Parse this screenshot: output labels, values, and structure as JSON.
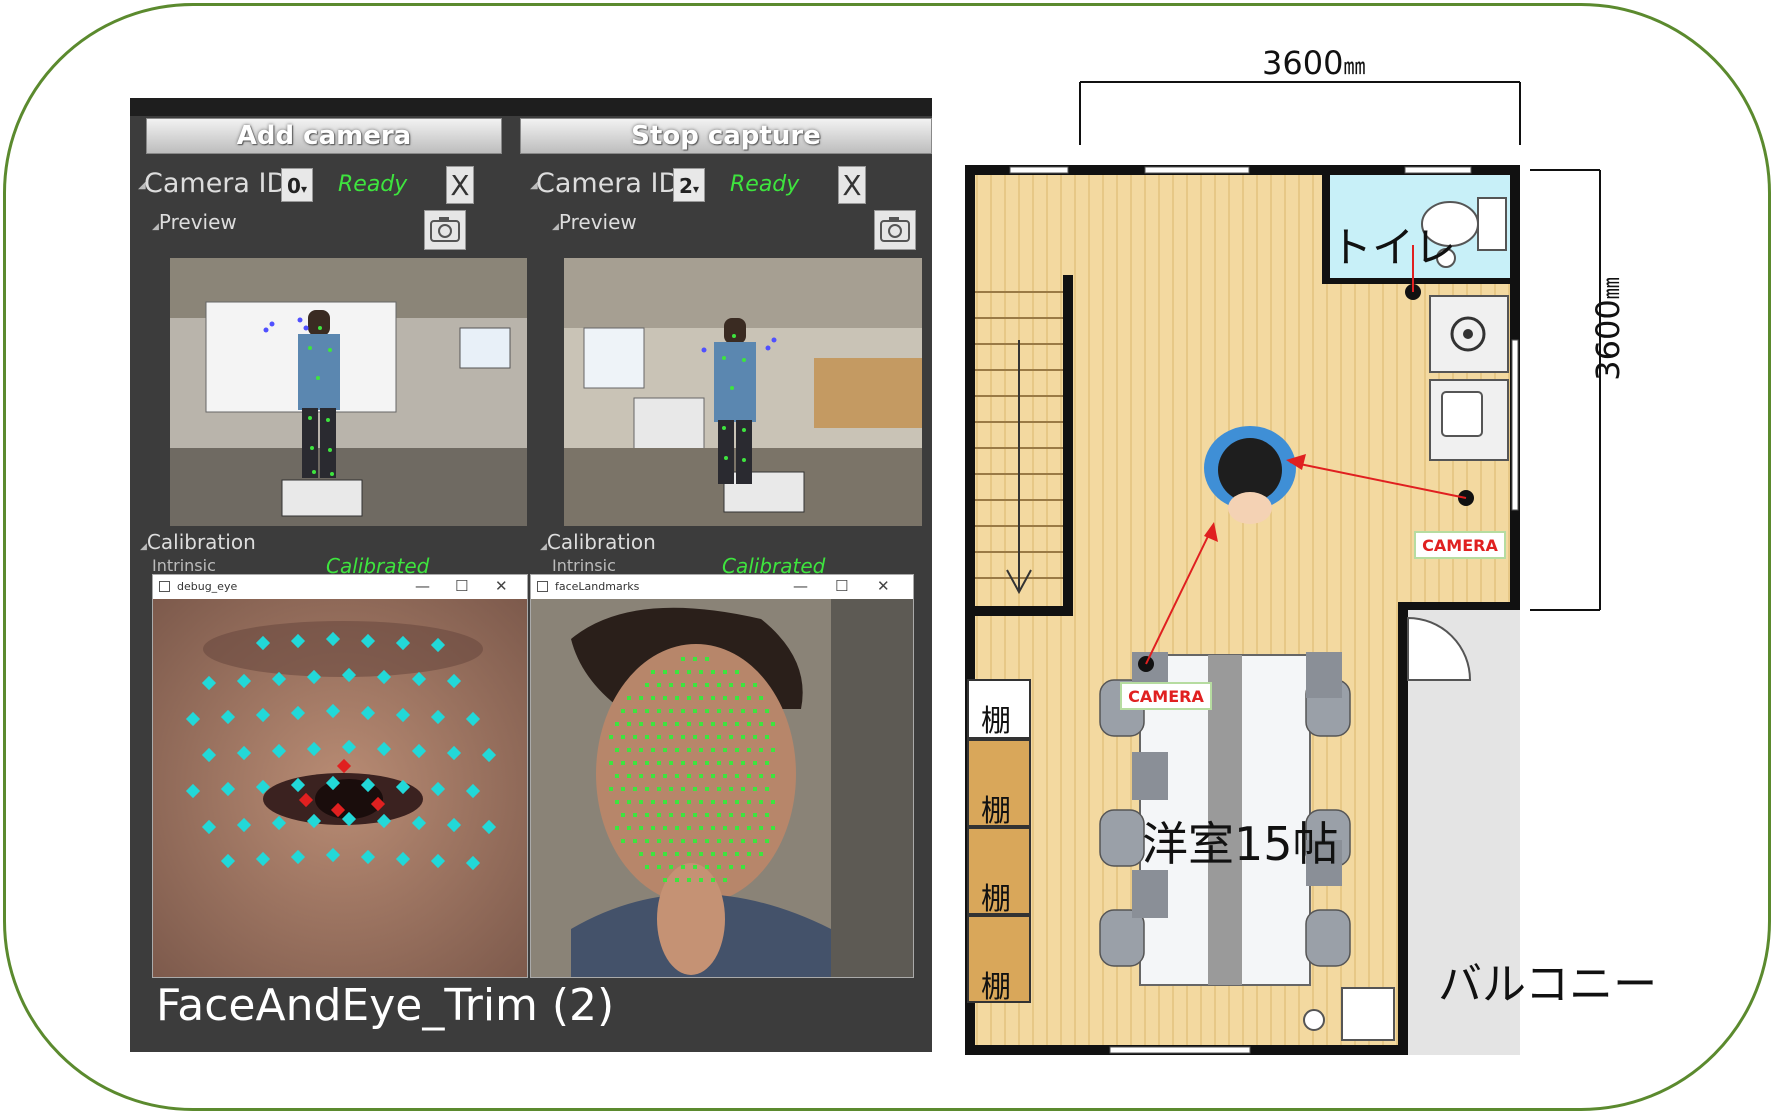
{
  "app": {
    "add_camera_label": "Add camera",
    "stop_capture_label": "Stop capture",
    "cameras": [
      {
        "camera_id_label": "Camera ID:",
        "id": "0",
        "status": "Ready",
        "close": "X",
        "preview_label": "Preview",
        "calibration_label": "Calibration",
        "intrinsic_label": "Intrinsic",
        "calibrated_label": "Calibrated"
      },
      {
        "camera_id_label": "Camera ID:",
        "id": "2",
        "status": "Ready",
        "close": "X",
        "preview_label": "Preview",
        "calibration_label": "Calibration",
        "intrinsic_label": "Intrinsic",
        "calibrated_label": "Calibrated"
      }
    ],
    "windows": [
      {
        "title": "debug_eye"
      },
      {
        "title": "faceLandmarks"
      }
    ],
    "caption": "FaceAndEye_Trim (2)"
  },
  "floorplan": {
    "width_dim": "3600",
    "height_dim": "3600",
    "unit": "㎜",
    "toilet_label": "トイレ",
    "room_label": "洋室15帖",
    "balcony_label": "バルコニー",
    "shelf_labels": [
      "棚",
      "棚",
      "棚",
      "棚"
    ],
    "camera_labels": [
      "CAMERA",
      "CAMERA"
    ]
  },
  "colors": {
    "frame": "#5b8a2e",
    "ready_green": "#3ee43e",
    "floor": "#f3d9a0",
    "toilet": "#c8f0f8",
    "camera_text": "#e02020"
  }
}
